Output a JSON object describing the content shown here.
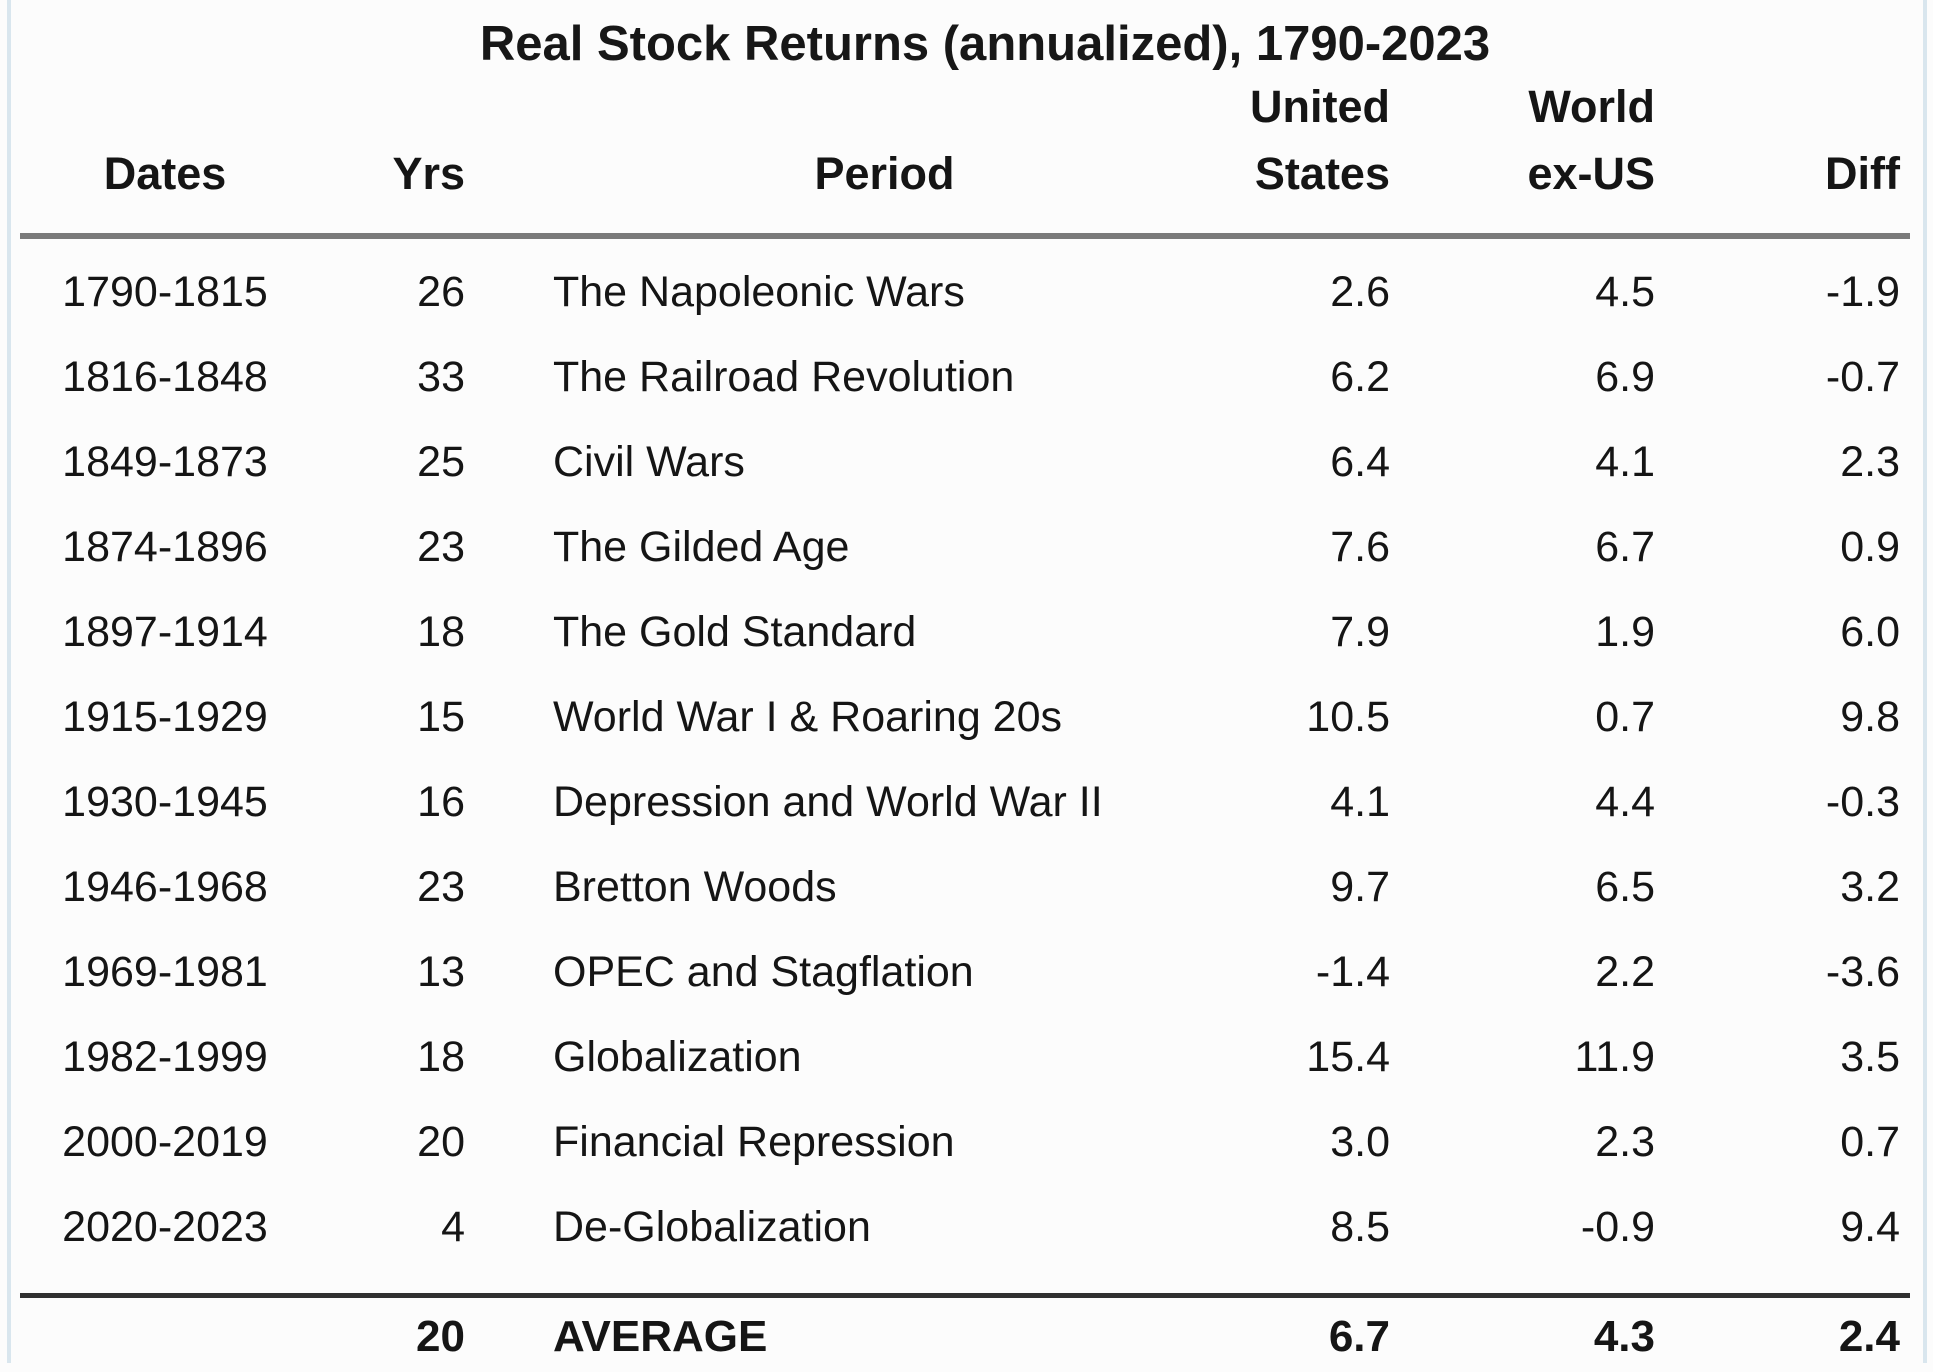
{
  "table": {
    "title": "Real Stock Returns (annualized), 1790-2023",
    "columns": [
      {
        "key": "dates",
        "label": "Dates"
      },
      {
        "key": "yrs",
        "label": "Yrs"
      },
      {
        "key": "period",
        "label": "Period"
      },
      {
        "key": "us",
        "label": "United States",
        "label_lines": [
          "United",
          "States"
        ]
      },
      {
        "key": "world",
        "label": "World ex-US",
        "label_lines": [
          "World",
          "ex-US"
        ]
      },
      {
        "key": "diff",
        "label": "Diff"
      }
    ],
    "rows": [
      {
        "dates": "1790-1815",
        "yrs": "26",
        "period": "The Napoleonic Wars",
        "us": "2.6",
        "world": "4.5",
        "diff": "-1.9"
      },
      {
        "dates": "1816-1848",
        "yrs": "33",
        "period": "The Railroad Revolution",
        "us": "6.2",
        "world": "6.9",
        "diff": "-0.7"
      },
      {
        "dates": "1849-1873",
        "yrs": "25",
        "period": "Civil Wars",
        "us": "6.4",
        "world": "4.1",
        "diff": "2.3"
      },
      {
        "dates": "1874-1896",
        "yrs": "23",
        "period": "The Gilded Age",
        "us": "7.6",
        "world": "6.7",
        "diff": "0.9"
      },
      {
        "dates": "1897-1914",
        "yrs": "18",
        "period": "The Gold Standard",
        "us": "7.9",
        "world": "1.9",
        "diff": "6.0"
      },
      {
        "dates": "1915-1929",
        "yrs": "15",
        "period": "World War I & Roaring 20s",
        "us": "10.5",
        "world": "0.7",
        "diff": "9.8"
      },
      {
        "dates": "1930-1945",
        "yrs": "16",
        "period": "Depression and World War II",
        "us": "4.1",
        "world": "4.4",
        "diff": "-0.3"
      },
      {
        "dates": "1946-1968",
        "yrs": "23",
        "period": "Bretton Woods",
        "us": "9.7",
        "world": "6.5",
        "diff": "3.2"
      },
      {
        "dates": "1969-1981",
        "yrs": "13",
        "period": "OPEC and Stagflation",
        "us": "-1.4",
        "world": "2.2",
        "diff": "-3.6"
      },
      {
        "dates": "1982-1999",
        "yrs": "18",
        "period": "Globalization",
        "us": "15.4",
        "world": "11.9",
        "diff": "3.5"
      },
      {
        "dates": "2000-2019",
        "yrs": "20",
        "period": "Financial Repression",
        "us": "3.0",
        "world": "2.3",
        "diff": "0.7"
      },
      {
        "dates": "2020-2023",
        "yrs": "4",
        "period": "De-Globalization",
        "us": "8.5",
        "world": "-0.9",
        "diff": "9.4"
      }
    ],
    "footer": {
      "dates": "",
      "yrs": "20",
      "period": "AVERAGE",
      "us": "6.7",
      "world": "4.3",
      "diff": "2.4"
    }
  },
  "chart_data": {
    "type": "table",
    "title": "Real Stock Returns (annualized), 1790-2023",
    "columns": [
      "Dates",
      "Yrs",
      "Period",
      "United States",
      "World ex-US",
      "Diff"
    ],
    "rows": [
      [
        "1790-1815",
        26,
        "The Napoleonic Wars",
        2.6,
        4.5,
        -1.9
      ],
      [
        "1816-1848",
        33,
        "The Railroad Revolution",
        6.2,
        6.9,
        -0.7
      ],
      [
        "1849-1873",
        25,
        "Civil Wars",
        6.4,
        4.1,
        2.3
      ],
      [
        "1874-1896",
        23,
        "The Gilded Age",
        7.6,
        6.7,
        0.9
      ],
      [
        "1897-1914",
        18,
        "The Gold Standard",
        7.9,
        1.9,
        6.0
      ],
      [
        "1915-1929",
        15,
        "World War I & Roaring 20s",
        10.5,
        0.7,
        9.8
      ],
      [
        "1930-1945",
        16,
        "Depression and World War II",
        4.1,
        4.4,
        -0.3
      ],
      [
        "1946-1968",
        23,
        "Bretton Woods",
        9.7,
        6.5,
        3.2
      ],
      [
        "1969-1981",
        13,
        "OPEC and Stagflation",
        -1.4,
        2.2,
        -3.6
      ],
      [
        "1982-1999",
        18,
        "Globalization",
        15.4,
        11.9,
        3.5
      ],
      [
        "2000-2019",
        20,
        "Financial Repression",
        3.0,
        2.3,
        0.7
      ],
      [
        "2020-2023",
        4,
        "De-Globalization",
        8.5,
        -0.9,
        9.4
      ]
    ],
    "average_row": [
      "",
      20,
      "AVERAGE",
      6.7,
      4.3,
      2.4
    ],
    "colors": {
      "background": "#fcfcfc",
      "text": "#151515",
      "header_rule": "#7a7a7a",
      "footer_rule": "#303030",
      "edge_line": "#d9e6ee"
    }
  }
}
